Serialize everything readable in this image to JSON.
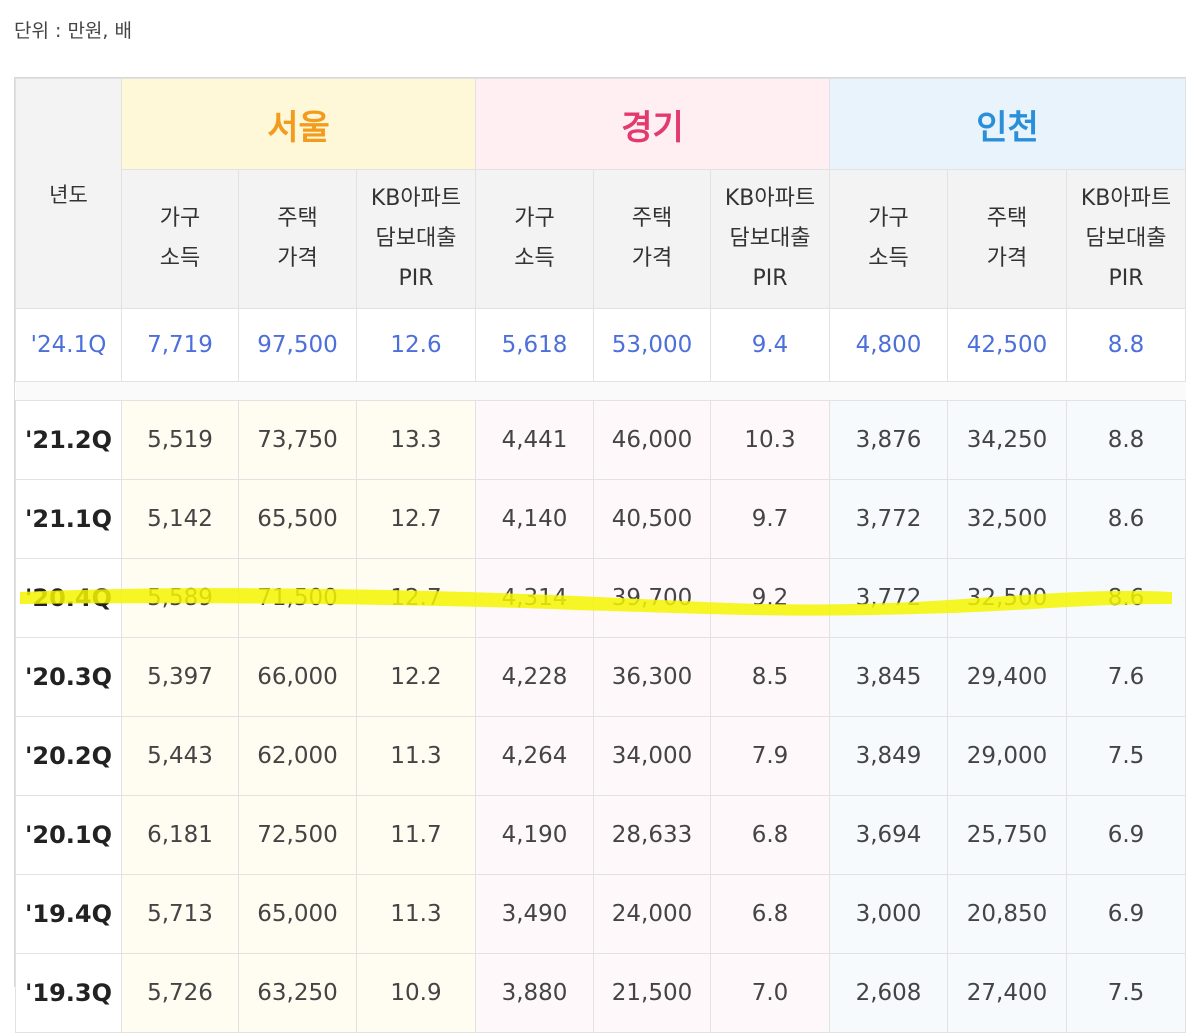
{
  "unit_label": "단위 : 만원, 배",
  "year_header": "년도",
  "regions": [
    {
      "name": "서울",
      "color": "#f29b1d"
    },
    {
      "name": "경기",
      "color": "#e23a6c"
    },
    {
      "name": "인천",
      "color": "#2a8fd9"
    }
  ],
  "sub_headers": [
    [
      "가구",
      "소득"
    ],
    [
      "주택",
      "가격"
    ],
    [
      "KB아파트",
      "담보대출",
      "PIR"
    ]
  ],
  "latest": {
    "year": "'24.1Q",
    "values": [
      "7,719",
      "97,500",
      "12.6",
      "5,618",
      "53,000",
      "9.4",
      "4,800",
      "42,500",
      "8.8"
    ]
  },
  "rows": [
    {
      "year": "'21.2Q",
      "values": [
        "5,519",
        "73,750",
        "13.3",
        "4,441",
        "46,000",
        "10.3",
        "3,876",
        "34,250",
        "8.8"
      ]
    },
    {
      "year": "'21.1Q",
      "values": [
        "5,142",
        "65,500",
        "12.7",
        "4,140",
        "40,500",
        "9.7",
        "3,772",
        "32,500",
        "8.6"
      ]
    },
    {
      "year": "'20.4Q",
      "values": [
        "5,589",
        "71,500",
        "12.7",
        "4,314",
        "39,700",
        "9.2",
        "3,772",
        "32,500",
        "8.6"
      ]
    },
    {
      "year": "'20.3Q",
      "values": [
        "5,397",
        "66,000",
        "12.2",
        "4,228",
        "36,300",
        "8.5",
        "3,845",
        "29,400",
        "7.6"
      ]
    },
    {
      "year": "'20.2Q",
      "values": [
        "5,443",
        "62,000",
        "11.3",
        "4,264",
        "34,000",
        "7.9",
        "3,849",
        "29,000",
        "7.5"
      ]
    },
    {
      "year": "'20.1Q",
      "values": [
        "6,181",
        "72,500",
        "11.7",
        "4,190",
        "28,633",
        "6.8",
        "3,694",
        "25,750",
        "6.9"
      ]
    },
    {
      "year": "'19.4Q",
      "values": [
        "5,713",
        "65,000",
        "11.3",
        "3,490",
        "24,000",
        "6.8",
        "3,000",
        "20,850",
        "6.9"
      ]
    },
    {
      "year": "'19.3Q",
      "values": [
        "5,726",
        "63,250",
        "10.9",
        "3,880",
        "21,500",
        "7.0",
        "2,608",
        "27,400",
        "7.5"
      ]
    }
  ],
  "highlight_color": "#f5f500"
}
